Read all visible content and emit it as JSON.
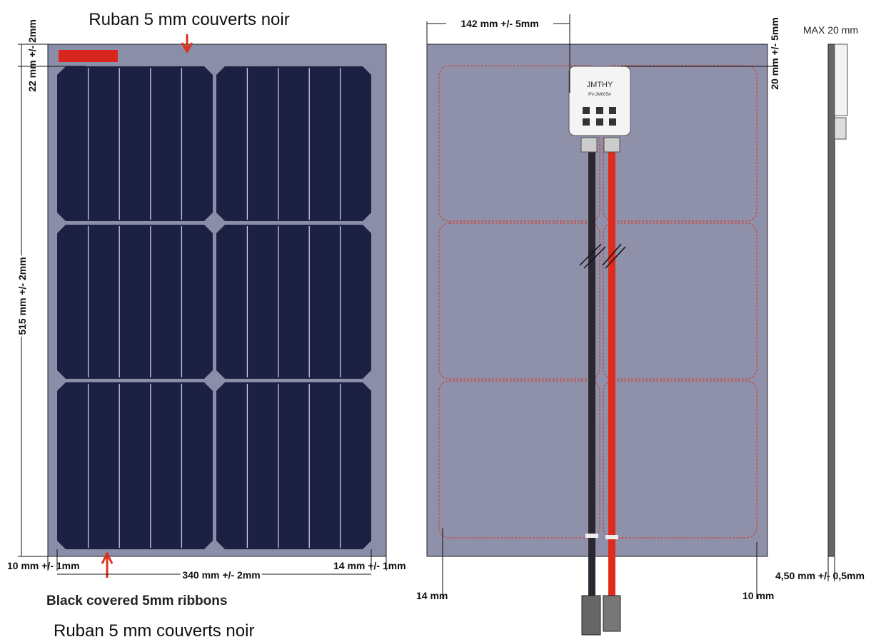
{
  "top_label": "Ruban 5 mm couverts noir",
  "front_panel": {
    "dim_top": "22 mm +/- 2mm",
    "dim_height": "515 mm +/- 2mm",
    "dim_left": "10 mm +/- 1mm",
    "dim_width": "340 mm +/- 2mm",
    "dim_right": "14 mm +/- 1mm"
  },
  "caption": "Black covered 5mm ribbons",
  "caption_fr": "Ruban 5 mm couverts noir",
  "back_panel": {
    "dim_box": "142 mm +/- 5mm",
    "dim_box_top": "20 mm +/- 5mm",
    "dim_left": "14 mm",
    "dim_right": "10 mm",
    "box_brand": "JMTHY",
    "box_model": "PV-JM005A"
  },
  "side_view": {
    "dim_max": "MAX 20 mm",
    "dim_thickness": "4,50 mm +/- 0,5mm"
  }
}
